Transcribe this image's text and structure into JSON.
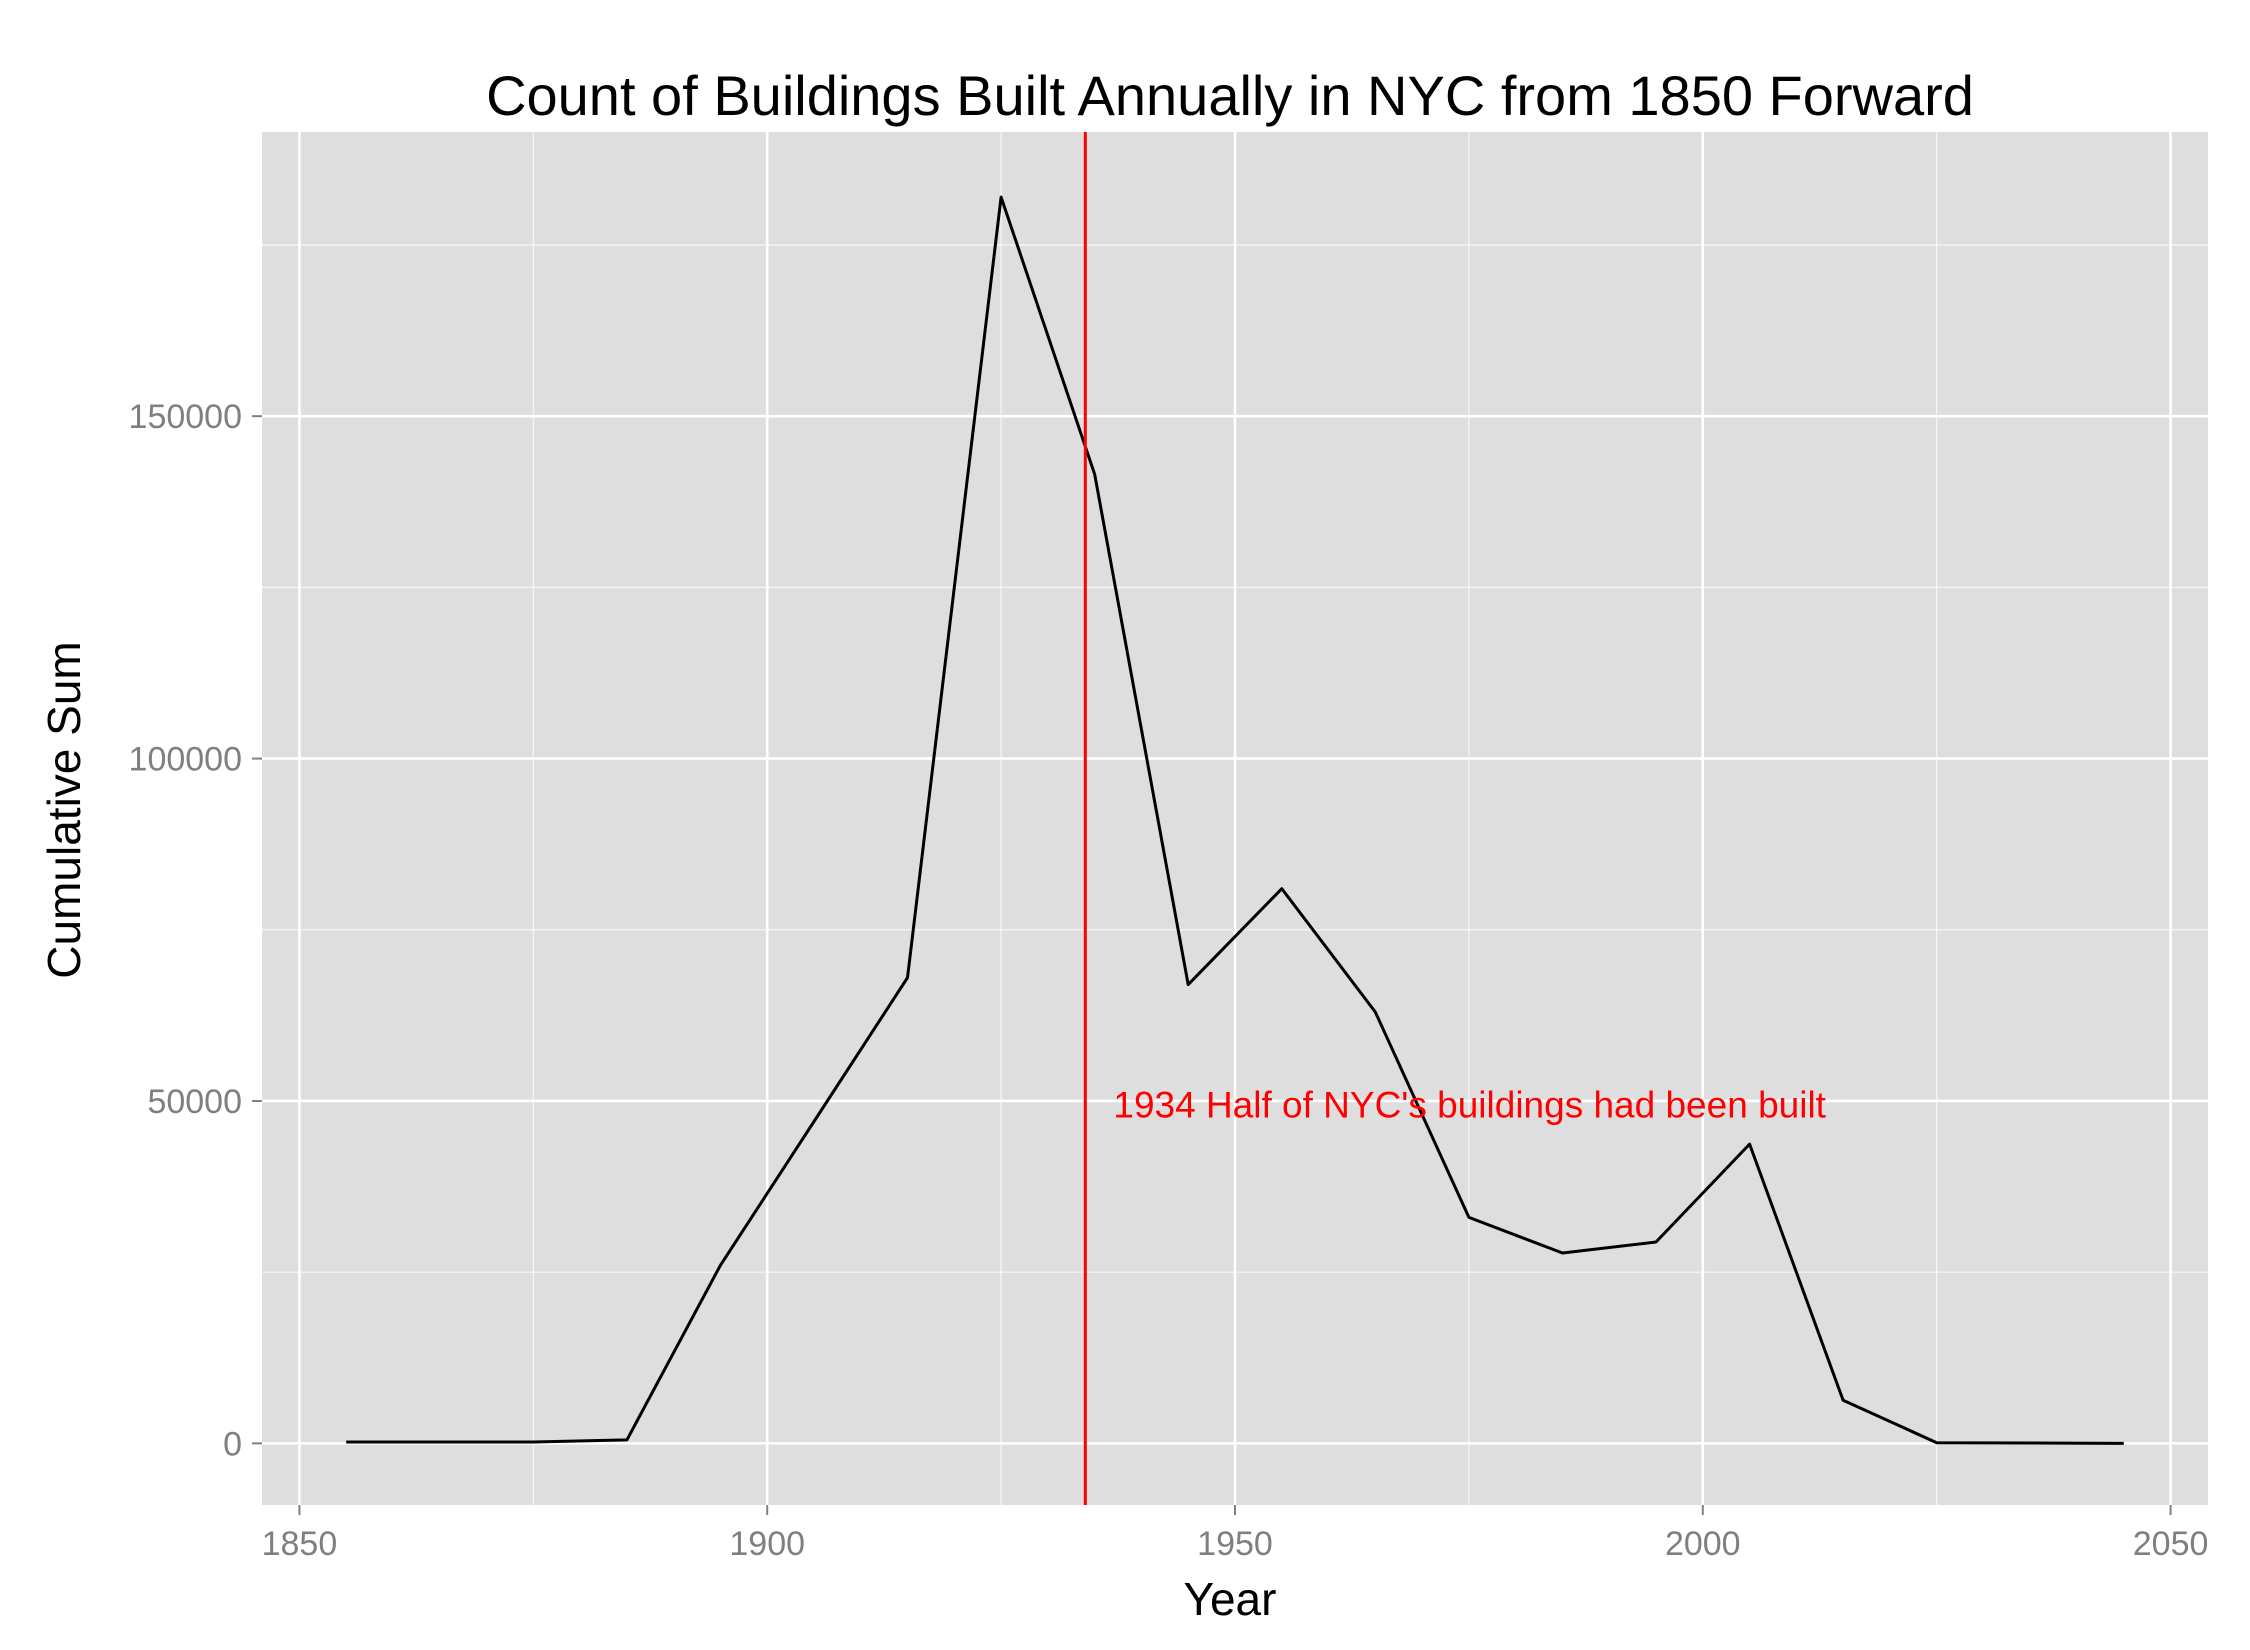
{
  "chart_data": {
    "type": "line",
    "title": "Count of Buildings Built Annually in NYC from 1850 Forward",
    "xlabel": "Year",
    "ylabel": "Cumulative Sum",
    "xlim": [
      1846,
      2054
    ],
    "ylim": [
      -9000,
      191500
    ],
    "x_ticks": [
      1850,
      1900,
      1950,
      2000,
      2050
    ],
    "y_ticks": [
      0,
      50000,
      100000,
      150000
    ],
    "grid": true,
    "panel_background": "#dedede",
    "grid_color": "#ffffff",
    "series": [
      {
        "color": "#000000",
        "x": [
          1855,
          1875,
          1885,
          1895,
          1905,
          1915,
          1925,
          1935,
          1945,
          1955,
          1965,
          1975,
          1985,
          1995,
          2005,
          2015,
          2025,
          2045
        ],
        "y": [
          200,
          200,
          500,
          26000,
          47000,
          68000,
          182000,
          141500,
          67000,
          81000,
          63000,
          33000,
          27800,
          29400,
          43700,
          6300,
          100,
          0
        ]
      }
    ],
    "vline": {
      "x": 1934,
      "color": "#ff0000"
    },
    "annotation": {
      "text": "1934 Half of NYC's buildings had been built",
      "x": 1937,
      "y": 49500,
      "color": "#ff0000"
    }
  }
}
